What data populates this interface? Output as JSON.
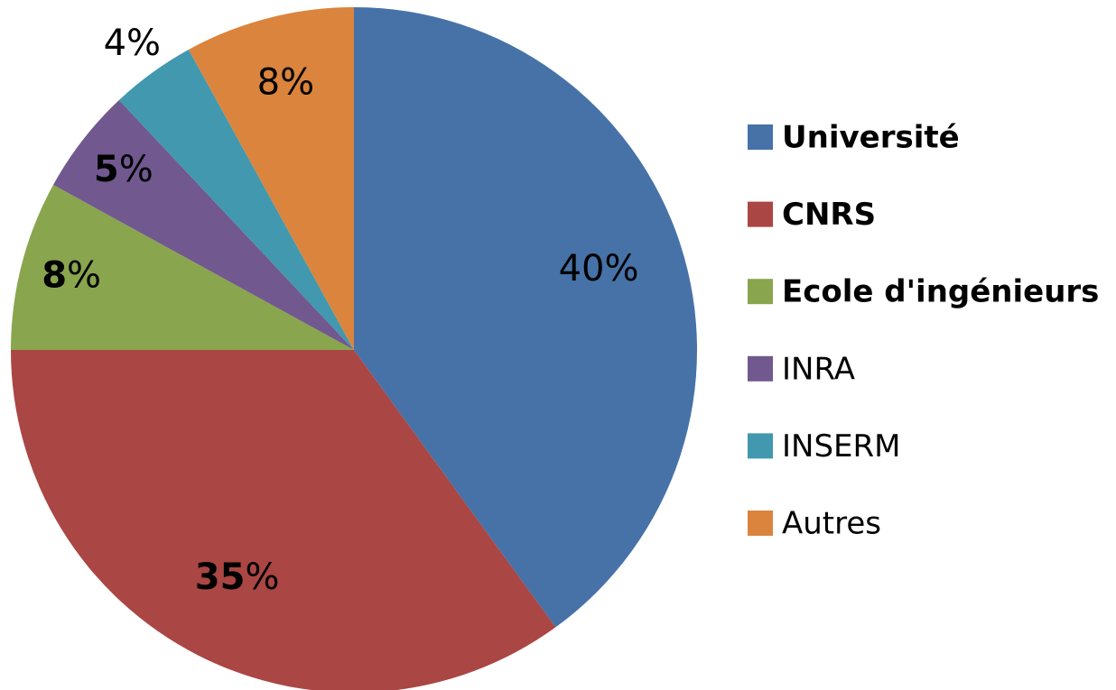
{
  "chart_data": {
    "type": "pie",
    "categories": [
      "Université",
      "CNRS",
      "Ecole d'ingénieurs",
      "INRA",
      "INSERM",
      "Autres"
    ],
    "values": [
      40,
      35,
      8,
      5,
      4,
      8
    ],
    "colors": [
      "#4672a8",
      "#aa4643",
      "#89a54e",
      "#71588f",
      "#4198af",
      "#db843d"
    ],
    "legend": "right"
  }
}
